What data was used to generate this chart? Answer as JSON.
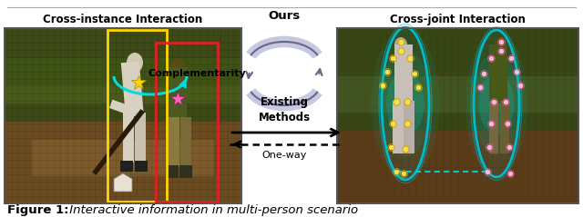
{
  "fig_width": 6.4,
  "fig_height": 2.39,
  "dpi": 100,
  "bg_color": "#ffffff",
  "title_text": "Figure 1:",
  "caption_text": " Interactive information in multi-person scenario",
  "left_label": "Cross-instance Interaction",
  "right_label": "Cross-joint Interaction",
  "ours_label": "Ours",
  "complementarity_label": "Complementarity",
  "existing_label": "Existing\nMethods",
  "oneway_label": "One-way",
  "top_line_color": "#aaaaaa",
  "arrow_fill_color": "#c8c8e0",
  "arrow_edge_color": "#666688"
}
